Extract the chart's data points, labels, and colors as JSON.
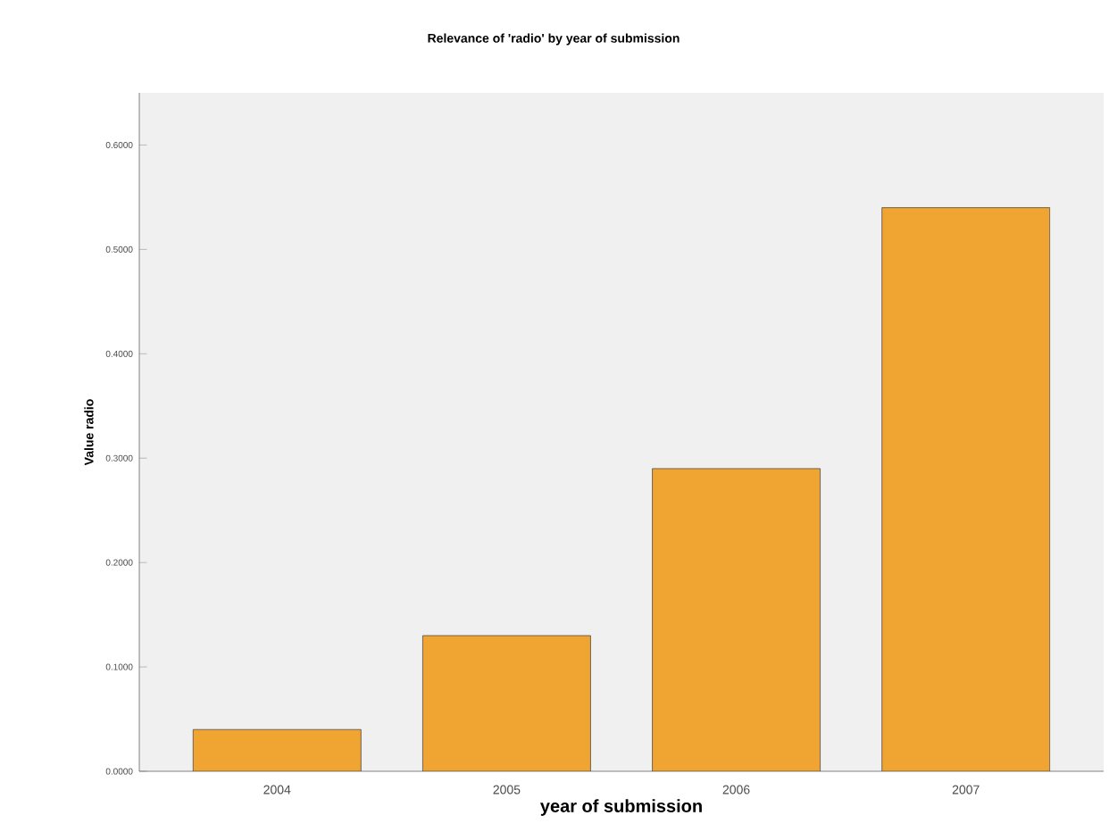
{
  "chart_data": {
    "type": "bar",
    "title": "Relevance of 'radio' by year of submission",
    "xlabel": "year of submission",
    "ylabel": "Value radio",
    "categories": [
      "2004",
      "2005",
      "2006",
      "2007"
    ],
    "values": [
      0.04,
      0.13,
      0.29,
      0.54
    ],
    "color": "#f0a431",
    "ylim": [
      0,
      0.65
    ],
    "yticks": [
      {
        "value": 0,
        "label": "0.0000"
      },
      {
        "value": 0.1,
        "label": "0.1000"
      },
      {
        "value": 0.2,
        "label": "0.2000"
      },
      {
        "value": 0.3,
        "label": "0.3000"
      },
      {
        "value": 0.4,
        "label": "0.4000"
      },
      {
        "value": 0.5,
        "label": "0.5000"
      },
      {
        "value": 0.6,
        "label": "0.6000"
      }
    ],
    "grid": false
  }
}
